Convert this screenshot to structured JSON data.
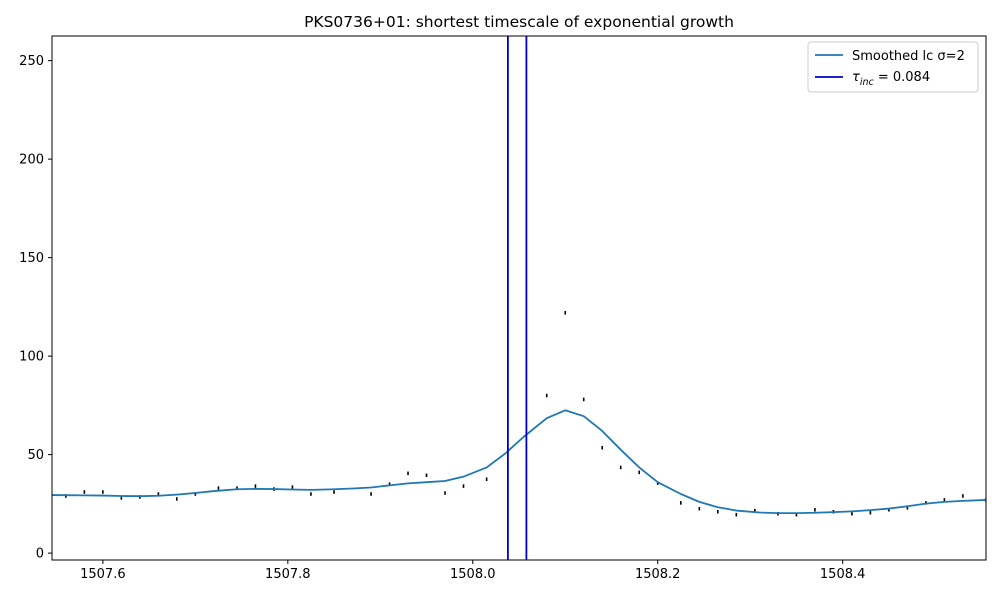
{
  "chart_data": {
    "type": "line",
    "title": "PKS0736+01: shortest timescale of exponential growth",
    "xlabel": "",
    "ylabel": "",
    "xlim": [
      1507.545,
      1508.555
    ],
    "ylim": [
      -3.5,
      262.5
    ],
    "xticks": [
      1507.6,
      1507.8,
      1508.0,
      1508.2,
      1508.4
    ],
    "xtick_labels": [
      "1507.6",
      "1507.8",
      "1508.0",
      "1508.2",
      "1508.4"
    ],
    "yticks": [
      0,
      50,
      100,
      150,
      200,
      250
    ],
    "ytick_labels": [
      "0",
      "50",
      "100",
      "150",
      "200",
      "250"
    ],
    "grid": false,
    "legend_position": "top-right",
    "series": [
      {
        "name": "Smoothed lc σ=2",
        "color": "#1f77b4",
        "kind": "line",
        "x": [
          1507.54,
          1507.56,
          1507.58,
          1507.6,
          1507.62,
          1507.64,
          1507.66,
          1507.68,
          1507.7,
          1507.72,
          1507.745,
          1507.765,
          1507.785,
          1507.805,
          1507.825,
          1507.85,
          1507.87,
          1507.89,
          1507.91,
          1507.93,
          1507.95,
          1507.97,
          1507.99,
          1508.015,
          1508.035,
          1508.055,
          1508.08,
          1508.1,
          1508.12,
          1508.14,
          1508.16,
          1508.18,
          1508.2,
          1508.225,
          1508.245,
          1508.265,
          1508.285,
          1508.31,
          1508.33,
          1508.35,
          1508.37,
          1508.39,
          1508.41,
          1508.43,
          1508.45,
          1508.47,
          1508.49,
          1508.51,
          1508.53,
          1508.555
        ],
        "y": [
          29.5,
          29.4,
          29.3,
          29.2,
          29.0,
          28.9,
          29.1,
          29.7,
          30.5,
          31.5,
          32.4,
          32.6,
          32.5,
          32.3,
          32.1,
          32.4,
          32.8,
          33.3,
          34.4,
          35.4,
          36.0,
          36.6,
          38.8,
          43.5,
          50.5,
          59.0,
          68.5,
          72.5,
          69.5,
          62.0,
          52.5,
          43.5,
          36.0,
          30.0,
          26.0,
          23.3,
          21.6,
          20.6,
          20.3,
          20.3,
          20.5,
          20.8,
          21.2,
          21.8,
          22.6,
          23.8,
          25.1,
          26.0,
          26.5,
          27.0
        ]
      },
      {
        "name": "τ_inc = 0.084",
        "color": "#0000cd",
        "kind": "vlines",
        "x": [
          1508.038,
          1508.058
        ]
      },
      {
        "name": "",
        "color": "#000000",
        "kind": "errorbars",
        "x": [
          1507.56,
          1507.58,
          1507.6,
          1507.62,
          1507.64,
          1507.66,
          1507.68,
          1507.7,
          1507.725,
          1507.745,
          1507.765,
          1507.785,
          1507.805,
          1507.825,
          1507.85,
          1507.89,
          1507.91,
          1507.93,
          1507.95,
          1507.97,
          1507.99,
          1508.015,
          1508.08,
          1508.1,
          1508.12,
          1508.14,
          1508.16,
          1508.18,
          1508.2,
          1508.225,
          1508.245,
          1508.265,
          1508.285,
          1508.305,
          1508.33,
          1508.35,
          1508.37,
          1508.39,
          1508.41,
          1508.43,
          1508.45,
          1508.47,
          1508.49,
          1508.51,
          1508.53,
          1508.555
        ],
        "y": [
          29.0,
          31.0,
          31.0,
          28.0,
          28.5,
          30.0,
          27.5,
          30.0,
          33.0,
          33.0,
          34.0,
          32.5,
          33.5,
          30.0,
          31.0,
          30.0,
          35.0,
          40.5,
          39.5,
          30.5,
          34.0,
          37.5,
          80.0,
          122.0,
          78.0,
          53.5,
          43.5,
          41.0,
          35.5,
          25.5,
          22.5,
          21.0,
          19.5,
          21.5,
          20.0,
          19.5,
          22.0,
          21.0,
          20.0,
          20.5,
          22.0,
          23.0,
          25.5,
          27.0,
          29.0,
          27.0
        ],
        "yerr": [
          0.9,
          0.9,
          0.9,
          0.9,
          0.9,
          0.9,
          0.9,
          0.9,
          0.9,
          0.9,
          0.9,
          0.9,
          0.9,
          0.9,
          0.9,
          0.9,
          0.9,
          0.9,
          0.9,
          0.9,
          0.9,
          0.9,
          0.9,
          0.9,
          0.9,
          0.9,
          0.9,
          0.9,
          0.9,
          0.9,
          0.9,
          0.9,
          0.9,
          0.9,
          0.9,
          0.9,
          0.9,
          0.9,
          0.9,
          0.9,
          0.9,
          0.9,
          0.9,
          0.9,
          0.9,
          0.9
        ]
      }
    ],
    "legend": [
      {
        "label": "Smoothed lc σ=2",
        "color": "#1f77b4"
      },
      {
        "label_main": "τ",
        "label_sub": "inc",
        "label_rest": " = 0.084",
        "color": "#0000cd"
      }
    ]
  }
}
